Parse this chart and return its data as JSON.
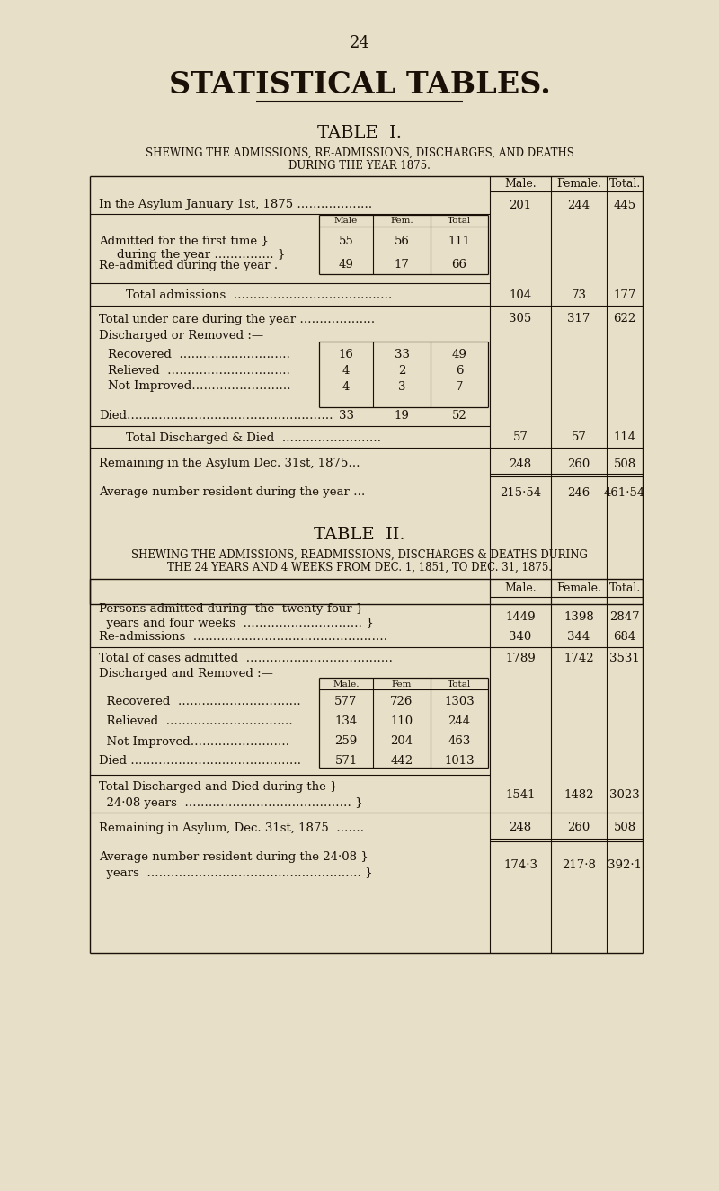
{
  "bg_color": "#e8dfc8",
  "text_color": "#1a1008",
  "page_num": "24",
  "main_title": "STATISTICAL TABLES.",
  "table1_title": "TABLE  I.",
  "table1_sub1": "SHEWING THE ADMISSIONS, RE-ADMISSIONS, DISCHARGES, AND DEATHS",
  "table1_sub2": "DURING THE YEAR 1875.",
  "table2_title": "TABLE  II.",
  "table2_sub1": "SHEWING THE ADMISSIONS, READMISSIONS, DISCHARGES & DEATHS DURING",
  "table2_sub2": "THE 24 YEARS AND 4 WEEKS FROM DEC. 1, 1851, TO DEC. 31, 1875."
}
